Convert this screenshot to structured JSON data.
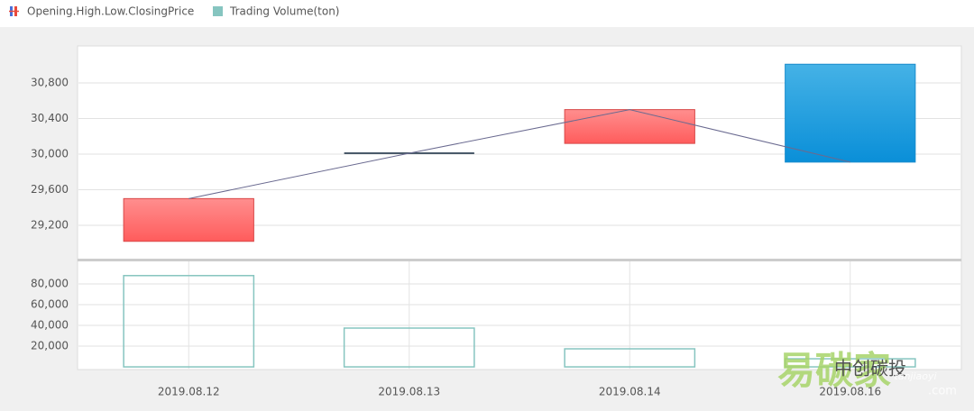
{
  "chart_data": {
    "type": "candlestick",
    "categories": [
      "2019.08.12",
      "2019.08.13",
      "2019.08.14",
      "2019.08.16"
    ],
    "series": [
      {
        "name": "Opening.High.Low.ClosingPrice",
        "up_color": "#ff6b6b",
        "down_color": "#1a9ae0",
        "line_color": "#6a6a90",
        "open": [
          29020,
          30010,
          30120,
          31010
        ],
        "high": [
          29500,
          30010,
          30500,
          31010
        ],
        "low": [
          29020,
          30010,
          30120,
          29910
        ],
        "close": [
          29500,
          30010,
          30500,
          29910
        ]
      },
      {
        "name": "Trading Volume(ton)",
        "color": "#86c5c0",
        "axis": "y2",
        "values": [
          88000,
          37400,
          17400,
          7800
        ]
      }
    ],
    "ylim": [
      28825,
      31205
    ],
    "yticks": [
      {
        "value": 29200,
        "label": "29,200"
      },
      {
        "value": 29600,
        "label": "29,600"
      },
      {
        "value": 30000,
        "label": "30,000"
      },
      {
        "value": 30400,
        "label": "30,400"
      },
      {
        "value": 30800,
        "label": "30,800"
      }
    ],
    "y2lim": [
      -1700,
      101700
    ],
    "y2ticks": [
      {
        "value": 20000,
        "label": "20,000"
      },
      {
        "value": 40000,
        "label": "40,000"
      },
      {
        "value": 60000,
        "label": "60,000"
      },
      {
        "value": 80000,
        "label": "80,000"
      }
    ],
    "grid": true
  },
  "watermark": {
    "brand": "易碳家",
    "author": "中创碳投",
    "site": "tanjiaoyi",
    "domain": ".com"
  }
}
